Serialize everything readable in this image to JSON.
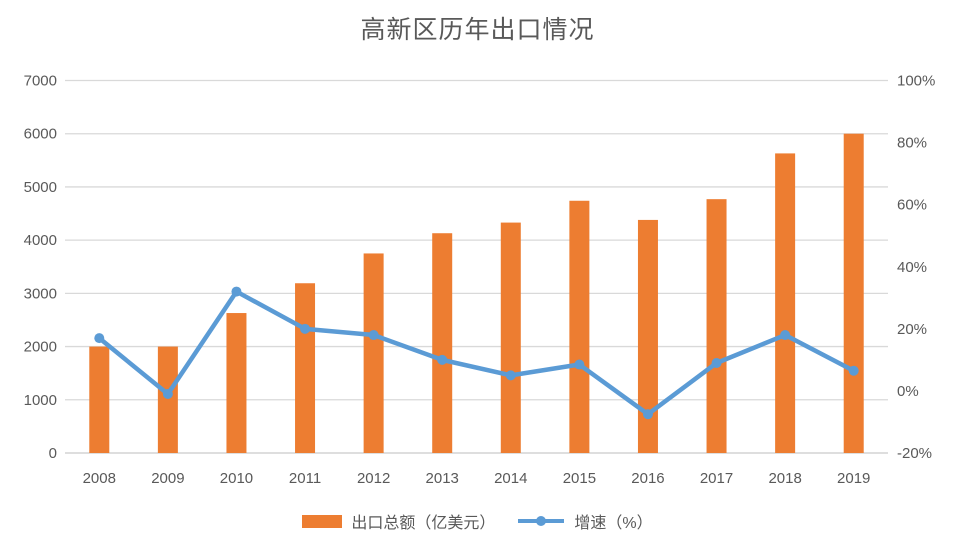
{
  "chart_data": {
    "type": "combo-bar-line",
    "title": "高新区历年出口情况",
    "categories": [
      "2008",
      "2009",
      "2010",
      "2011",
      "2012",
      "2013",
      "2014",
      "2015",
      "2016",
      "2017",
      "2018",
      "2019"
    ],
    "series": [
      {
        "name": "出口总额（亿美元）",
        "type": "bar",
        "axis": "left",
        "color": "#ED7D31",
        "values": [
          2000,
          2000,
          2630,
          3190,
          3750,
          4130,
          4330,
          4740,
          4380,
          4770,
          5630,
          6000
        ]
      },
      {
        "name": "增速（%）",
        "type": "line",
        "axis": "right",
        "color": "#5B9BD5",
        "values": [
          17,
          -1,
          32,
          20,
          18,
          10,
          5,
          8.5,
          -7.5,
          9,
          18,
          6.5
        ]
      }
    ],
    "left_axis": {
      "min": 0,
      "max": 7000,
      "ticks": [
        7000,
        6000,
        5000,
        4000,
        3000,
        2000,
        1000,
        0
      ]
    },
    "right_axis": {
      "min": -20,
      "max": 100,
      "ticks": [
        100,
        80,
        60,
        40,
        20,
        0,
        -20
      ],
      "suffix": "%"
    },
    "grid": true,
    "legend_position": "bottom",
    "colors": {
      "bar": "#ED7D31",
      "line": "#5B9BD5",
      "gridline": "#D9D9D9",
      "axis_line": "#C9C9C9",
      "text": "#595959",
      "background": "#FFFFFF"
    }
  }
}
